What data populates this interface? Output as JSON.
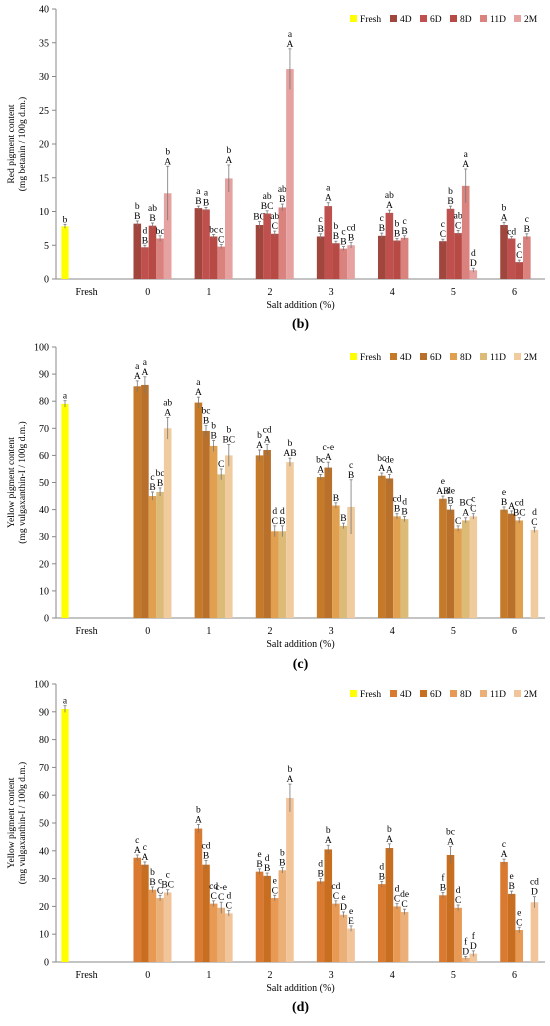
{
  "panel_captions": [
    "(b)",
    "(c)",
    "(d)"
  ],
  "legend_labels": [
    "Fresh",
    "4D",
    "6D",
    "8D",
    "11D",
    "2M"
  ],
  "chart_data": [
    {
      "type": "bar",
      "caption": "(b)",
      "ylabel_lines": [
        "Red pigment content",
        "(mg betanin / 100g d.m.)"
      ],
      "xlabel": "Salt addition (%)",
      "categories": [
        "Fresh",
        "0",
        "1",
        "2",
        "3",
        "4",
        "5",
        "6"
      ],
      "ylim": [
        0,
        40
      ],
      "yticks": [
        0,
        5,
        10,
        15,
        20,
        25,
        30,
        35,
        40
      ],
      "grid": false,
      "legend_position": "top-right",
      "colors": [
        "#ffff00",
        "#a0463d",
        "#c0504d",
        "#b84a46",
        "#d9827e",
        "#e6a2a0"
      ],
      "series": [
        {
          "name": "Fresh",
          "values": [
            7.8,
            null,
            null,
            null,
            null,
            null,
            null,
            null
          ],
          "errors": [
            0.3,
            0,
            0,
            0,
            0,
            0,
            0,
            0
          ],
          "labels": [
            [
              "b"
            ],
            [],
            [],
            [],
            [],
            [],
            [],
            []
          ]
        },
        {
          "name": "4D",
          "values": [
            null,
            8.2,
            10.5,
            8.0,
            6.3,
            6.4,
            5.6,
            8.0
          ],
          "errors": [
            0,
            0.4,
            0.3,
            0.5,
            0.4,
            0.4,
            0.3,
            0.4
          ],
          "labels": [
            [],
            [
              "b",
              "B"
            ],
            [
              "a",
              "B"
            ],
            [
              "BC"
            ],
            [
              "c",
              "B"
            ],
            [
              "c",
              "B"
            ],
            [
              "c",
              "C"
            ],
            [
              "b",
              "A"
            ]
          ]
        },
        {
          "name": "6D",
          "values": [
            null,
            4.7,
            10.3,
            9.7,
            10.8,
            9.8,
            10.4,
            6.0
          ],
          "errors": [
            0,
            0.3,
            0.3,
            0.4,
            0.5,
            0.4,
            0.4,
            0.3
          ],
          "labels": [
            [],
            [
              "d",
              "B"
            ],
            [
              "a",
              "B"
            ],
            [
              "ab",
              "BC"
            ],
            [
              "a",
              "A"
            ],
            [
              "ab",
              "A"
            ],
            [
              "b",
              "B"
            ],
            [
              "cd"
            ]
          ]
        },
        {
          "name": "8D",
          "values": [
            null,
            7.9,
            6.3,
            6.7,
            5.3,
            5.7,
            6.8,
            2.5
          ],
          "errors": [
            0,
            0.4,
            0.3,
            0.4,
            0.3,
            0.3,
            0.4,
            0.3
          ],
          "labels": [
            [],
            [
              "ab",
              "B"
            ],
            [
              "bc"
            ],
            [
              "ab",
              "C"
            ],
            [
              "b",
              "B"
            ],
            [
              "b",
              "B"
            ],
            [
              "ab",
              "C"
            ],
            [
              "c",
              "C"
            ]
          ]
        },
        {
          "name": "11D",
          "values": [
            null,
            6.0,
            4.8,
            10.6,
            4.5,
            6.1,
            13.8,
            6.3
          ],
          "errors": [
            0,
            0.4,
            0.3,
            0.5,
            0.3,
            0.3,
            2.5,
            0.4
          ],
          "labels": [
            [],
            [
              "bc"
            ],
            [
              "c",
              "C"
            ],
            [
              "ab",
              "B"
            ],
            [
              "c",
              "B"
            ],
            [
              "c",
              "B"
            ],
            [
              "a",
              "A"
            ],
            [
              "c",
              "B"
            ]
          ]
        },
        {
          "name": "2M",
          "values": [
            null,
            12.7,
            14.9,
            31.1,
            5.0,
            null,
            1.3,
            null
          ],
          "errors": [
            0,
            4.0,
            2.0,
            3.0,
            0.4,
            0,
            0.3,
            0
          ],
          "labels": [
            [],
            [
              "b",
              "A"
            ],
            [
              "b",
              "A"
            ],
            [
              "a",
              "A"
            ],
            [
              "cd",
              "B"
            ],
            [],
            [
              "d",
              "D"
            ],
            []
          ]
        }
      ]
    },
    {
      "type": "bar",
      "caption": "(c)",
      "ylabel_lines": [
        "Yellow  pigment content",
        "(mg vulgaxanthin-I / 100g d.m.)"
      ],
      "xlabel": "Salt addition (%)",
      "categories": [
        "Fresh",
        "0",
        "1",
        "2",
        "3",
        "4",
        "5",
        "6"
      ],
      "ylim": [
        0,
        100
      ],
      "yticks": [
        0,
        10,
        20,
        30,
        40,
        50,
        60,
        70,
        80,
        90,
        100
      ],
      "grid": false,
      "legend_position": "top-right",
      "colors": [
        "#ffff00",
        "#c57a2a",
        "#b8702a",
        "#e0a050",
        "#dcbb78",
        "#efcb9e"
      ],
      "series": [
        {
          "name": "Fresh",
          "values": [
            79,
            null,
            null,
            null,
            null,
            null,
            null,
            null
          ],
          "errors": [
            1.2,
            0,
            0,
            0,
            0,
            0,
            0,
            0
          ],
          "labels": [
            [
              "a"
            ],
            [],
            [],
            [],
            [],
            [],
            [],
            []
          ]
        },
        {
          "name": "4D",
          "values": [
            null,
            85.5,
            79.5,
            60,
            52,
            52.5,
            44,
            40
          ],
          "errors": [
            0,
            2,
            2,
            2,
            1,
            1,
            1,
            1
          ],
          "labels": [
            [],
            [
              "a",
              "A"
            ],
            [
              "a",
              "A"
            ],
            [
              "b",
              "A"
            ],
            [
              "bc",
              "A"
            ],
            [
              "bc",
              "A"
            ],
            [
              "e",
              "AB"
            ],
            [
              "e",
              "B"
            ]
          ]
        },
        {
          "name": "6D",
          "values": [
            null,
            86,
            69,
            62,
            55.5,
            51.5,
            40,
            38.5
          ],
          "errors": [
            0,
            3,
            2,
            2,
            2,
            1.5,
            1.5,
            1
          ],
          "labels": [
            [],
            [
              "a",
              "A"
            ],
            [
              "bc",
              "B"
            ],
            [
              "cd",
              "A"
            ],
            [
              "c-e",
              "A"
            ],
            [
              "de",
              "A"
            ],
            [
              "de",
              "B"
            ],
            [
              "A"
            ]
          ]
        },
        {
          "name": "8D",
          "values": [
            null,
            45,
            63.5,
            32,
            41.5,
            37.5,
            33,
            36
          ],
          "errors": [
            0,
            1.5,
            2,
            2,
            1,
            1,
            1,
            1
          ],
          "labels": [
            [],
            [
              "c",
              "B"
            ],
            [
              "b",
              "B"
            ],
            [
              "d",
              "C"
            ],
            [
              "B"
            ],
            [
              "cd",
              "B"
            ],
            [
              "C"
            ],
            [
              "cd",
              "BC"
            ]
          ]
        },
        {
          "name": "11D",
          "values": [
            null,
            46.5,
            53,
            32,
            34,
            36.5,
            36,
            null
          ],
          "errors": [
            0,
            1.5,
            2,
            2,
            1,
            1,
            1,
            0
          ],
          "labels": [
            [],
            [
              "bc",
              "B"
            ],
            [
              "C"
            ],
            [
              "d",
              "B"
            ],
            [
              "B"
            ],
            [
              "d",
              "B"
            ],
            [
              "BC",
              "A"
            ],
            []
          ]
        },
        {
          "name": "2M",
          "values": [
            null,
            70,
            60,
            57.5,
            41,
            null,
            37.5,
            32.5
          ],
          "errors": [
            0,
            4,
            4,
            1.5,
            10,
            0,
            1,
            1
          ],
          "labels": [
            [],
            [
              "ab",
              "A"
            ],
            [
              "b",
              "BC"
            ],
            [
              "b",
              "AB"
            ],
            [
              "c",
              "B"
            ],
            [],
            [
              "c",
              "C"
            ],
            [
              "d",
              "C"
            ]
          ]
        }
      ]
    },
    {
      "type": "bar",
      "caption": "(d)",
      "ylabel_lines": [
        "Yellow  pigment content",
        "(mg vulgaxanthin-I / 100g d.m.)"
      ],
      "xlabel": "Salt addition (%)",
      "categories": [
        "Fresh",
        "0",
        "1",
        "2",
        "3",
        "4",
        "5",
        "6"
      ],
      "ylim": [
        0,
        100
      ],
      "yticks": [
        0,
        10,
        20,
        30,
        40,
        50,
        60,
        70,
        80,
        90,
        100
      ],
      "grid": false,
      "legend_position": "top-right",
      "colors": [
        "#ffff00",
        "#d97a30",
        "#c86e20",
        "#e89a55",
        "#eab078",
        "#f2c49a"
      ],
      "series": [
        {
          "name": "Fresh",
          "values": [
            91,
            null,
            null,
            null,
            null,
            null,
            null,
            null
          ],
          "errors": [
            1.2,
            0,
            0,
            0,
            0,
            0,
            0,
            0
          ],
          "labels": [
            [
              "a"
            ],
            [],
            [],
            [],
            [],
            [],
            [],
            []
          ]
        },
        {
          "name": "4D",
          "values": [
            null,
            37.5,
            48,
            32.5,
            29,
            28,
            24,
            36
          ],
          "errors": [
            0,
            1,
            1.5,
            1,
            1,
            1,
            1,
            1
          ],
          "labels": [
            [],
            [
              "c",
              "A"
            ],
            [
              "b",
              "A"
            ],
            [
              "e",
              "B"
            ],
            [
              "d",
              "B"
            ],
            [
              "d",
              "B"
            ],
            [
              "f",
              "B"
            ],
            [
              "c",
              "A"
            ]
          ]
        },
        {
          "name": "6D",
          "values": [
            null,
            35,
            35,
            31,
            40.5,
            41,
            38.5,
            24.5
          ],
          "errors": [
            0,
            1,
            1.5,
            1,
            1.5,
            1.5,
            3,
            1
          ],
          "labels": [
            [],
            [
              "c",
              "A"
            ],
            [
              "cd",
              "B"
            ],
            [
              "d",
              "B"
            ],
            [
              "b",
              "A"
            ],
            [
              "b",
              "A"
            ],
            [
              "bc",
              "A"
            ],
            [
              "e",
              "B"
            ]
          ]
        },
        {
          "name": "8D",
          "values": [
            null,
            26,
            21,
            23,
            21,
            20,
            19.5,
            11.5
          ],
          "errors": [
            0,
            1,
            1,
            1,
            1,
            1,
            1,
            1
          ],
          "labels": [
            [],
            [
              "b",
              "B"
            ],
            [
              "cd",
              "C"
            ],
            [
              "e",
              "C"
            ],
            [
              "cd",
              "C"
            ],
            [
              "d",
              "C"
            ],
            [
              "d",
              "C"
            ],
            [
              "e",
              "C"
            ]
          ]
        },
        {
          "name": "11D",
          "values": [
            null,
            23,
            19.5,
            33,
            17,
            18,
            1.5,
            null
          ],
          "errors": [
            0,
            1,
            2,
            1,
            1,
            1,
            0.5,
            0
          ],
          "labels": [
            [],
            [
              "c",
              "C"
            ],
            [
              "c-e",
              "C"
            ],
            [
              "b",
              "B"
            ],
            [
              "e",
              "D"
            ],
            [
              "de",
              "C"
            ],
            [
              "f",
              "D"
            ],
            []
          ]
        },
        {
          "name": "2M",
          "values": [
            null,
            25,
            17.5,
            59,
            12,
            null,
            3,
            21.5
          ],
          "errors": [
            0,
            1,
            1,
            5,
            1,
            0,
            1,
            2
          ],
          "labels": [
            [],
            [
              "c",
              "BC"
            ],
            [
              "d",
              "C"
            ],
            [
              "b",
              "A"
            ],
            [
              "e",
              "E"
            ],
            [],
            [
              "f",
              "D"
            ],
            [
              "cd",
              "D"
            ]
          ]
        }
      ]
    }
  ]
}
